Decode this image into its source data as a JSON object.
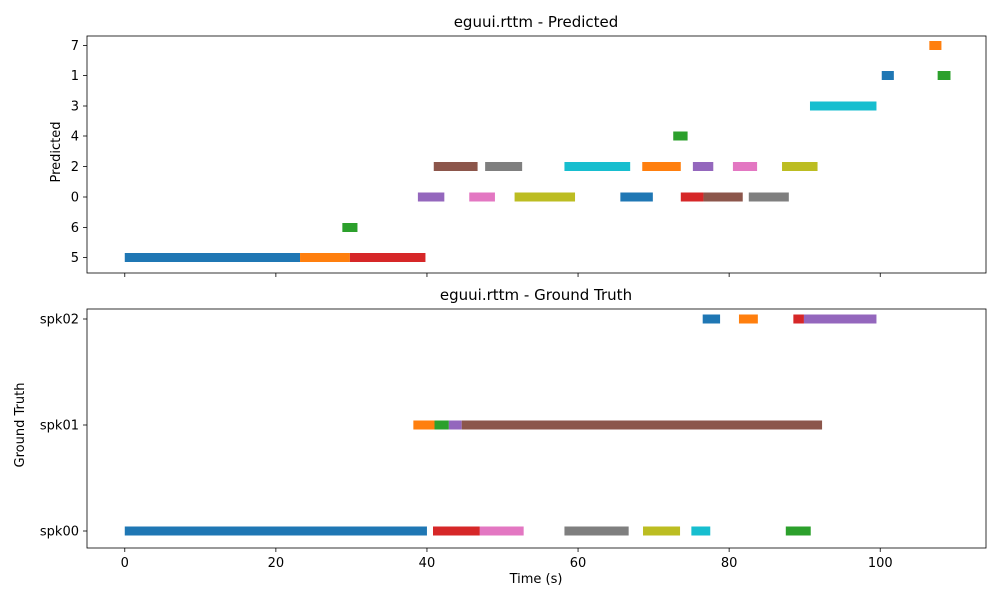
{
  "chart_data": [
    {
      "type": "gantt",
      "title": "eguui.rttm - Predicted",
      "ylabel": "Predicted",
      "xlabel": "",
      "xlim": [
        -5,
        114
      ],
      "x_ticks": [
        0,
        20,
        40,
        60,
        80,
        100
      ],
      "show_x_tick_labels": false,
      "categories": [
        "5",
        "6",
        "0",
        "2",
        "4",
        "3",
        "1",
        "7"
      ],
      "grid": false,
      "segments": [
        {
          "label": "5",
          "start": 0.0,
          "end": 23.2,
          "color": "#1f77b4"
        },
        {
          "label": "5",
          "start": 23.2,
          "end": 29.8,
          "color": "#ff7f0e"
        },
        {
          "label": "5",
          "start": 29.8,
          "end": 39.8,
          "color": "#d62728"
        },
        {
          "label": "6",
          "start": 28.8,
          "end": 30.8,
          "color": "#2ca02c"
        },
        {
          "label": "0",
          "start": 38.8,
          "end": 42.3,
          "color": "#9467bd"
        },
        {
          "label": "0",
          "start": 45.6,
          "end": 49.0,
          "color": "#e377c2"
        },
        {
          "label": "0",
          "start": 51.6,
          "end": 59.6,
          "color": "#bcbd22"
        },
        {
          "label": "0",
          "start": 65.6,
          "end": 69.9,
          "color": "#1f77b4"
        },
        {
          "label": "0",
          "start": 73.6,
          "end": 76.6,
          "color": "#d62728"
        },
        {
          "label": "0",
          "start": 76.6,
          "end": 81.8,
          "color": "#8c564b"
        },
        {
          "label": "0",
          "start": 82.6,
          "end": 87.9,
          "color": "#7f7f7f"
        },
        {
          "label": "2",
          "start": 40.9,
          "end": 46.7,
          "color": "#8c564b"
        },
        {
          "label": "2",
          "start": 47.7,
          "end": 52.6,
          "color": "#7f7f7f"
        },
        {
          "label": "2",
          "start": 58.2,
          "end": 66.9,
          "color": "#17becf"
        },
        {
          "label": "2",
          "start": 68.5,
          "end": 73.6,
          "color": "#ff7f0e"
        },
        {
          "label": "2",
          "start": 75.2,
          "end": 77.9,
          "color": "#9467bd"
        },
        {
          "label": "2",
          "start": 80.5,
          "end": 83.7,
          "color": "#e377c2"
        },
        {
          "label": "2",
          "start": 87.0,
          "end": 91.7,
          "color": "#bcbd22"
        },
        {
          "label": "4",
          "start": 72.6,
          "end": 74.5,
          "color": "#2ca02c"
        },
        {
          "label": "3",
          "start": 90.7,
          "end": 99.5,
          "color": "#17becf"
        },
        {
          "label": "1",
          "start": 100.2,
          "end": 101.8,
          "color": "#1f77b4"
        },
        {
          "label": "1",
          "start": 107.6,
          "end": 109.3,
          "color": "#2ca02c"
        },
        {
          "label": "7",
          "start": 106.5,
          "end": 108.1,
          "color": "#ff7f0e"
        }
      ]
    },
    {
      "type": "gantt",
      "title": "eguui.rttm - Ground Truth",
      "ylabel": "Ground Truth",
      "xlabel": "Time (s)",
      "xlim": [
        -5,
        114
      ],
      "x_ticks": [
        0,
        20,
        40,
        60,
        80,
        100
      ],
      "show_x_tick_labels": true,
      "categories": [
        "spk00",
        "spk01",
        "spk02"
      ],
      "grid": false,
      "segments": [
        {
          "label": "spk00",
          "start": 0.0,
          "end": 40.0,
          "color": "#1f77b4"
        },
        {
          "label": "spk00",
          "start": 40.8,
          "end": 47.0,
          "color": "#d62728"
        },
        {
          "label": "spk00",
          "start": 47.0,
          "end": 52.8,
          "color": "#e377c2"
        },
        {
          "label": "spk00",
          "start": 58.2,
          "end": 66.7,
          "color": "#7f7f7f"
        },
        {
          "label": "spk00",
          "start": 68.6,
          "end": 73.5,
          "color": "#bcbd22"
        },
        {
          "label": "spk00",
          "start": 75.0,
          "end": 77.5,
          "color": "#17becf"
        },
        {
          "label": "spk00",
          "start": 87.5,
          "end": 90.8,
          "color": "#2ca02c"
        },
        {
          "label": "spk01",
          "start": 38.2,
          "end": 41.0,
          "color": "#ff7f0e"
        },
        {
          "label": "spk01",
          "start": 41.0,
          "end": 42.9,
          "color": "#2ca02c"
        },
        {
          "label": "spk01",
          "start": 42.9,
          "end": 44.6,
          "color": "#9467bd"
        },
        {
          "label": "spk01",
          "start": 44.6,
          "end": 92.3,
          "color": "#8c564b"
        },
        {
          "label": "spk02",
          "start": 76.5,
          "end": 78.8,
          "color": "#1f77b4"
        },
        {
          "label": "spk02",
          "start": 81.3,
          "end": 83.8,
          "color": "#ff7f0e"
        },
        {
          "label": "spk02",
          "start": 88.5,
          "end": 89.9,
          "color": "#d62728"
        },
        {
          "label": "spk02",
          "start": 89.9,
          "end": 99.5,
          "color": "#9467bd"
        }
      ]
    }
  ]
}
